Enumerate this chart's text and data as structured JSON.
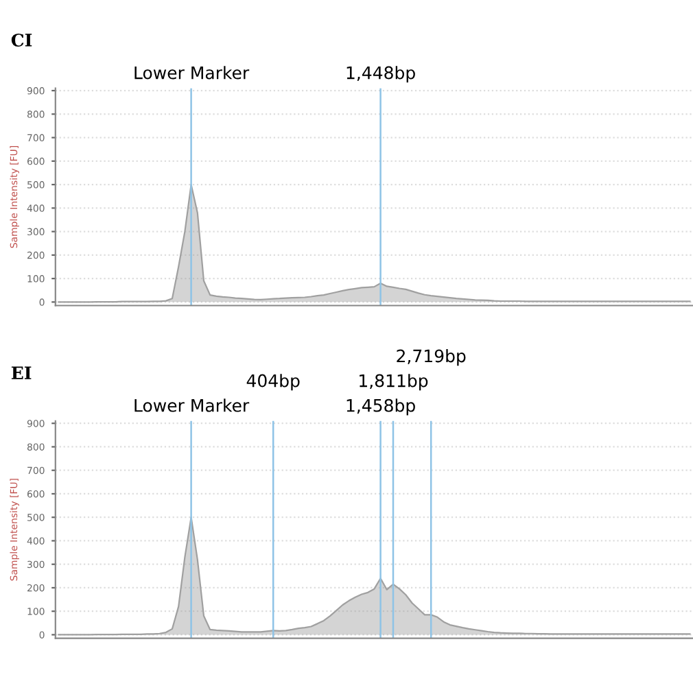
{
  "chart_data": [
    {
      "type": "area",
      "title": "CI",
      "ylabel": "Sample Intensity [FU]",
      "ylim": [
        -15,
        910
      ],
      "yticks": [
        0,
        100,
        200,
        300,
        400,
        500,
        600,
        700,
        800,
        900
      ],
      "tick_labels": "y",
      "grid": true,
      "categories": [
        null,
        null,
        null,
        null,
        null,
        null,
        null,
        null,
        null,
        null,
        null,
        null,
        null,
        null,
        null,
        null,
        null,
        null,
        null,
        null,
        null,
        null,
        null,
        null,
        null,
        null,
        null,
        null,
        null,
        null,
        null,
        null,
        null,
        null,
        null,
        null,
        null,
        null,
        null,
        null,
        null,
        null,
        null,
        null,
        null,
        null,
        null,
        null,
        null,
        null,
        null,
        null,
        null,
        null,
        null,
        null,
        null,
        null,
        null,
        null,
        null,
        null,
        null,
        null,
        null,
        null,
        null,
        null,
        null,
        null,
        null,
        null,
        null,
        null,
        null,
        null,
        null,
        null,
        null,
        null,
        null,
        null,
        null,
        null,
        null,
        null,
        null,
        null,
        null,
        null,
        null,
        null,
        null,
        null,
        null,
        null,
        null,
        null,
        null,
        null,
        null
      ],
      "series": [
        {
          "color": "#a0a0a0",
          "values": [
            0,
            0,
            0,
            0,
            0,
            0,
            1,
            1,
            1,
            1,
            2,
            2,
            2,
            2,
            2,
            3,
            3,
            5,
            15,
            150,
            300,
            500,
            380,
            90,
            30,
            25,
            22,
            20,
            17,
            15,
            13,
            11,
            10,
            12,
            14,
            15,
            17,
            18,
            19,
            20,
            23,
            27,
            30,
            36,
            42,
            48,
            53,
            57,
            61,
            63,
            65,
            80,
            67,
            63,
            58,
            54,
            46,
            38,
            31,
            27,
            24,
            21,
            18,
            15,
            13,
            11,
            9,
            8,
            7,
            5,
            4,
            4,
            4,
            4,
            3,
            3,
            3,
            3,
            3,
            3,
            3,
            3,
            3,
            3,
            3,
            3,
            3,
            3,
            3,
            3,
            3,
            3,
            3,
            3,
            3,
            3,
            3,
            3,
            3,
            3,
            3
          ]
        }
      ],
      "annotations": [
        "Lower Marker",
        "1,448bp"
      ]
    },
    {
      "type": "area",
      "title": "EI",
      "ylabel": "Sample Intensity [FU]",
      "ylim": [
        -15,
        910
      ],
      "yticks": [
        0,
        100,
        200,
        300,
        400,
        500,
        600,
        700,
        800,
        900
      ],
      "tick_labels": "y",
      "grid": true,
      "categories": [
        null,
        null,
        null,
        null,
        null,
        null,
        null,
        null,
        null,
        null,
        null,
        null,
        null,
        null,
        null,
        null,
        null,
        null,
        null,
        null,
        null,
        null,
        null,
        null,
        null,
        null,
        null,
        null,
        null,
        null,
        null,
        null,
        null,
        null,
        null,
        null,
        null,
        null,
        null,
        null,
        null,
        null,
        null,
        null,
        null,
        null,
        null,
        null,
        null,
        null,
        null,
        null,
        null,
        null,
        null,
        null,
        null,
        null,
        null,
        null,
        null,
        null,
        null,
        null,
        null,
        null,
        null,
        null,
        null,
        null,
        null,
        null,
        null,
        null,
        null,
        null,
        null,
        null,
        null,
        null,
        null,
        null,
        null,
        null,
        null,
        null,
        null,
        null,
        null,
        null,
        null,
        null,
        null,
        null,
        null,
        null,
        null,
        null,
        null,
        null,
        null
      ],
      "series": [
        {
          "color": "#a0a0a0",
          "values": [
            0,
            0,
            0,
            0,
            0,
            0,
            1,
            1,
            1,
            1,
            2,
            2,
            2,
            2,
            3,
            3,
            5,
            10,
            25,
            120,
            330,
            500,
            320,
            80,
            22,
            19,
            18,
            16,
            14,
            12,
            12,
            12,
            12,
            15,
            18,
            16,
            18,
            22,
            27,
            30,
            35,
            47,
            60,
            80,
            103,
            127,
            145,
            160,
            172,
            180,
            195,
            240,
            192,
            215,
            195,
            170,
            135,
            110,
            85,
            85,
            75,
            55,
            42,
            36,
            30,
            25,
            21,
            17,
            13,
            10,
            8,
            7,
            6,
            6,
            5,
            5,
            4,
            4,
            3,
            3,
            3,
            3,
            3,
            3,
            3,
            3,
            3,
            3,
            3,
            3,
            3,
            3,
            3,
            3,
            3,
            3,
            3,
            3,
            3,
            3,
            3
          ]
        }
      ],
      "annotations": [
        "Lower Marker",
        "404bp",
        "1,458bp",
        "1,811bp",
        "2,719bp"
      ]
    }
  ]
}
